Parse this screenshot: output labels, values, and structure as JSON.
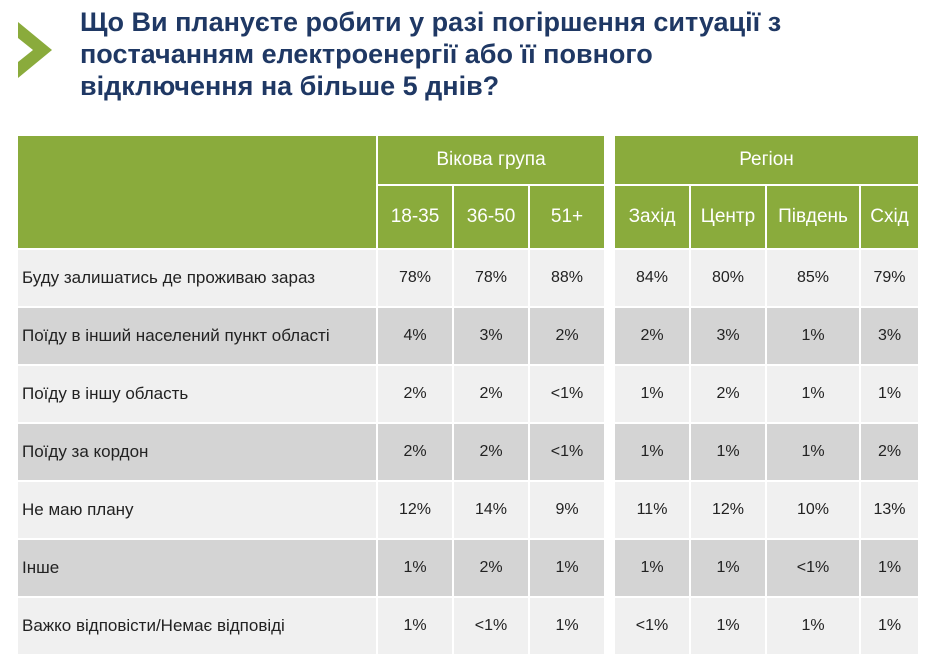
{
  "title_lines": [
    "Що Ви плануєте робити у разі погіршення ситуації з",
    "постачанням електроенергії або її повного",
    "відключення на більше 5 днів?"
  ],
  "colors": {
    "header": "#8aab3c",
    "title": "#1f3864",
    "row_light": "#f0f0f0",
    "row_dark": "#d4d4d4"
  },
  "chart_data": {
    "type": "table",
    "groups": [
      {
        "label": "Вікова група",
        "columns": [
          "18-35",
          "36-50",
          "51+"
        ]
      },
      {
        "label": "Регіон",
        "columns": [
          "Захід",
          "Центр",
          "Південь",
          "Схід"
        ]
      }
    ],
    "rows": [
      {
        "label": "Буду залишатись де проживаю зараз",
        "values": [
          "78%",
          "78%",
          "88%",
          "84%",
          "80%",
          "85%",
          "79%"
        ]
      },
      {
        "label": "Поїду в інший населений пункт області",
        "values": [
          "4%",
          "3%",
          "2%",
          "2%",
          "3%",
          "1%",
          "3%"
        ]
      },
      {
        "label": "Поїду в іншу область",
        "values": [
          "2%",
          "2%",
          "<1%",
          "1%",
          "2%",
          "1%",
          "1%"
        ]
      },
      {
        "label": "Поїду за кордон",
        "values": [
          "2%",
          "2%",
          "<1%",
          "1%",
          "1%",
          "1%",
          "2%"
        ]
      },
      {
        "label": "Не маю плану",
        "values": [
          "12%",
          "14%",
          "9%",
          "11%",
          "12%",
          "10%",
          "13%"
        ]
      },
      {
        "label": "Інше",
        "values": [
          "1%",
          "2%",
          "1%",
          "1%",
          "1%",
          "<1%",
          "1%"
        ]
      },
      {
        "label": "Важко відповісти/Немає відповіді",
        "values": [
          "1%",
          "<1%",
          "1%",
          "<1%",
          "1%",
          "1%",
          "1%"
        ]
      }
    ]
  }
}
